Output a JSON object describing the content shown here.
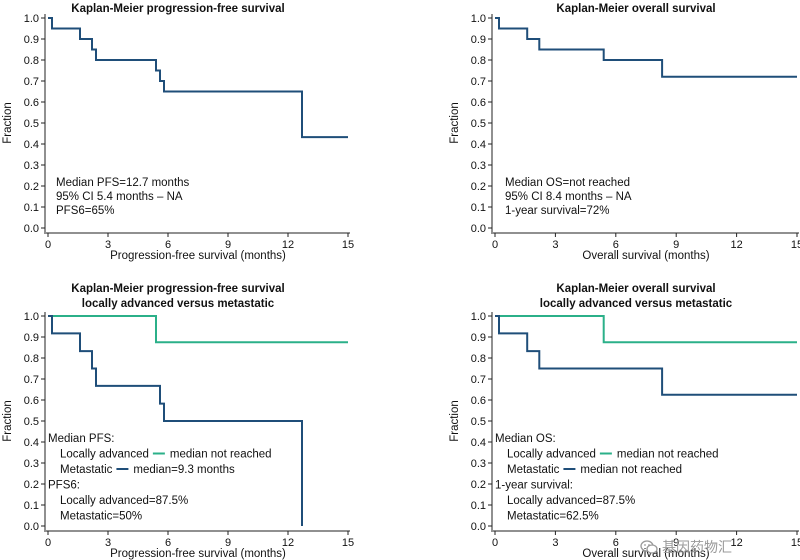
{
  "colors": {
    "dark_series": "#1f4e79",
    "light_series": "#2bb089",
    "axis": "#222222",
    "text": "#111111"
  },
  "chart_data": [
    {
      "type": "line",
      "subtype": "step-survival",
      "title": [
        "Kaplan-Meier progression-free survival"
      ],
      "xlabel": "Progression-free survival (months)",
      "ylabel": "Fraction",
      "xlim": [
        0,
        15
      ],
      "ylim": [
        0,
        1
      ],
      "xticks": [
        "0",
        "3",
        "6",
        "9",
        "12",
        "15"
      ],
      "yticks": [
        "0.0",
        "0.1",
        "0.2",
        "0.3",
        "0.4",
        "0.5",
        "0.6",
        "0.7",
        "0.8",
        "0.9",
        "1.0"
      ],
      "series": [
        {
          "color": "dark",
          "x": [
            0,
            0.2,
            0.2,
            1.6,
            1.6,
            2.2,
            2.2,
            2.4,
            2.4,
            5.4,
            5.4,
            5.6,
            5.6,
            5.8,
            5.8,
            12.7,
            12.7,
            15
          ],
          "y": [
            1.0,
            1.0,
            0.95,
            0.95,
            0.9,
            0.9,
            0.85,
            0.85,
            0.8,
            0.8,
            0.75,
            0.75,
            0.7,
            0.7,
            0.65,
            0.65,
            0.433,
            0.433
          ]
        }
      ],
      "annotations": [
        "Median PFS=12.7 months",
        "95% CI 5.4 months – NA",
        "PFS6=65%"
      ]
    },
    {
      "type": "line",
      "subtype": "step-survival",
      "title": [
        "Kaplan-Meier overall survival"
      ],
      "xlabel": "Overall survival (months)",
      "ylabel": "Fraction",
      "xlim": [
        0,
        15
      ],
      "ylim": [
        0,
        1
      ],
      "xticks": [
        "0",
        "3",
        "6",
        "9",
        "12",
        "15"
      ],
      "yticks": [
        "0.0",
        "0.1",
        "0.2",
        "0.3",
        "0.4",
        "0.5",
        "0.6",
        "0.7",
        "0.8",
        "0.9",
        "1.0"
      ],
      "series": [
        {
          "color": "dark",
          "x": [
            0,
            0.2,
            0.2,
            1.6,
            1.6,
            2.2,
            2.2,
            5.4,
            5.4,
            8.3,
            8.3,
            15
          ],
          "y": [
            1.0,
            1.0,
            0.95,
            0.95,
            0.9,
            0.9,
            0.85,
            0.85,
            0.8,
            0.8,
            0.72,
            0.72
          ]
        }
      ],
      "annotations": [
        "Median OS=not reached",
        "95% CI 8.4 months – NA",
        "1-year survival=72%"
      ]
    },
    {
      "type": "line",
      "subtype": "step-survival",
      "title": [
        "Kaplan-Meier progression-free survival",
        "locally advanced versus metastatic"
      ],
      "xlabel": "Progression-free survival (months)",
      "ylabel": "Fraction",
      "xlim": [
        0,
        15
      ],
      "ylim": [
        0,
        1
      ],
      "xticks": [
        "0",
        "3",
        "6",
        "9",
        "12",
        "15"
      ],
      "yticks": [
        "0.0",
        "0.1",
        "0.2",
        "0.3",
        "0.4",
        "0.5",
        "0.6",
        "0.7",
        "0.8",
        "0.9",
        "1.0"
      ],
      "series": [
        {
          "name": "Locally advanced",
          "color": "light",
          "x": [
            0,
            5.4,
            5.4,
            15
          ],
          "y": [
            1.0,
            1.0,
            0.875,
            0.875
          ]
        },
        {
          "name": "Metastatic",
          "color": "dark",
          "x": [
            0,
            0.2,
            0.2,
            1.6,
            1.6,
            2.2,
            2.2,
            2.4,
            2.4,
            5.6,
            5.6,
            5.8,
            5.8,
            12.7,
            12.7
          ],
          "y": [
            1.0,
            1.0,
            0.917,
            0.917,
            0.833,
            0.833,
            0.75,
            0.75,
            0.667,
            0.667,
            0.583,
            0.583,
            0.5,
            0.5,
            0.0
          ]
        }
      ],
      "annotations": [
        {
          "text": "Median PFS:"
        },
        {
          "text": "Locally advanced",
          "swatch": "light",
          "suffix": "median not reached",
          "indent": true
        },
        {
          "text": "Metastatic",
          "swatch": "dark",
          "suffix": "median=9.3 months",
          "indent": true
        },
        {
          "text": "PFS6:"
        },
        {
          "text": "Locally advanced=87.5%",
          "indent": true
        },
        {
          "text": "Metastatic=50%",
          "indent": true
        }
      ]
    },
    {
      "type": "line",
      "subtype": "step-survival",
      "title": [
        "Kaplan-Meier overall survival",
        "locally advanced versus metastatic"
      ],
      "xlabel": "Overall survival (months)",
      "ylabel": "Fraction",
      "xlim": [
        0,
        15
      ],
      "ylim": [
        0,
        1
      ],
      "xticks": [
        "0",
        "3",
        "6",
        "9",
        "12",
        "15"
      ],
      "yticks": [
        "0.0",
        "0.1",
        "0.2",
        "0.3",
        "0.4",
        "0.5",
        "0.6",
        "0.7",
        "0.8",
        "0.9",
        "1.0"
      ],
      "series": [
        {
          "name": "Locally advanced",
          "color": "light",
          "x": [
            0,
            5.4,
            5.4,
            15
          ],
          "y": [
            1.0,
            1.0,
            0.875,
            0.875
          ]
        },
        {
          "name": "Metastatic",
          "color": "dark",
          "x": [
            0,
            0.2,
            0.2,
            1.6,
            1.6,
            2.2,
            2.2,
            8.3,
            8.3,
            15
          ],
          "y": [
            1.0,
            1.0,
            0.917,
            0.917,
            0.833,
            0.833,
            0.75,
            0.75,
            0.625,
            0.625
          ]
        }
      ],
      "annotations": [
        {
          "text": "Median OS:"
        },
        {
          "text": "Locally advanced",
          "swatch": "light",
          "suffix": "median not reached",
          "indent": true
        },
        {
          "text": "Metastatic",
          "swatch": "dark",
          "suffix": "median not reached",
          "indent": true
        },
        {
          "text": "1-year survival:"
        },
        {
          "text": "Locally advanced=87.5%",
          "indent": true
        },
        {
          "text": "Metastatic=62.5%",
          "indent": true
        }
      ]
    }
  ],
  "watermark": {
    "text": "基因药物汇",
    "icon": "wechat-icon"
  }
}
